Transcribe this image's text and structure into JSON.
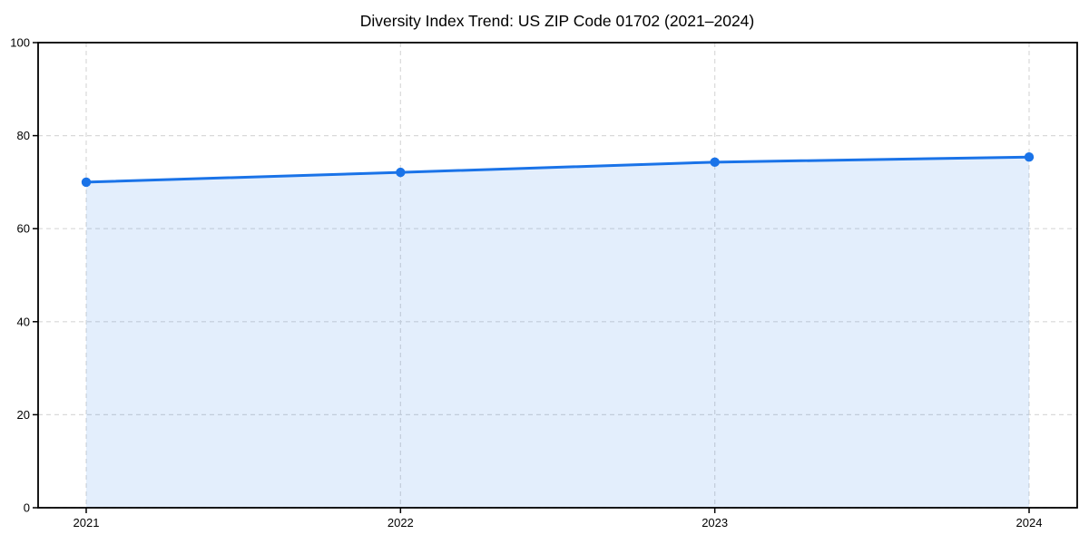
{
  "chart_data": {
    "type": "area",
    "title": "Diversity Index Trend: US ZIP Code 01702 (2021–2024)",
    "categories": [
      "2021",
      "2022",
      "2023",
      "2024"
    ],
    "series": [
      {
        "name": "Diversity Index",
        "values": [
          70.0,
          72.1,
          74.3,
          75.4
        ]
      }
    ],
    "xlabel": "",
    "ylabel": "",
    "ylim": [
      0,
      100
    ],
    "yticks": [
      0,
      20,
      40,
      60,
      80,
      100
    ],
    "grid": true,
    "grid_style": "dashed",
    "legend": "none",
    "colors": {
      "line": "#1a73e8",
      "marker": "#1a73e8",
      "fill": "#1a73e8",
      "fill_opacity": 0.12,
      "grid": "#d9d9d9",
      "axis": "#000000",
      "text": "#000000",
      "background": "#ffffff"
    }
  }
}
